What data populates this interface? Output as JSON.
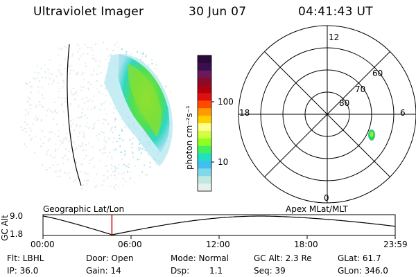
{
  "header": {
    "instrument": "Ultraviolet Imager",
    "date": "30 Jun 07",
    "time": "04:41:43 UT"
  },
  "colorbar": {
    "unit_label": "photon cm⁻²s⁻¹",
    "ticks": [
      "100",
      "10"
    ],
    "colors": [
      "#2a0a3a",
      "#3a0f4f",
      "#6a1a5a",
      "#8a0a2a",
      "#b00010",
      "#e01010",
      "#ff4a00",
      "#ff9a00",
      "#ffd000",
      "#ffff90",
      "#d0ff40",
      "#90ff20",
      "#40f060",
      "#20e0c0",
      "#40c0f0",
      "#80d8e8",
      "#c0e8e0",
      "#e8f0ee"
    ]
  },
  "polar_plot": {
    "mlt_labels": [
      "12",
      "18",
      "6",
      "0"
    ],
    "lat_labels": [
      "60",
      "70",
      "80"
    ]
  },
  "timeline": {
    "ylabel": "GC Alt",
    "ymax": "9.0",
    "ymin": "1.8",
    "left_title": "Geographic Lat/Lon",
    "right_title": "Apex MLat/MLT",
    "time_ticks": [
      "00:00",
      "06:00",
      "12:00",
      "18:00",
      "23:59"
    ],
    "current_time_fraction": 0.1957
  },
  "info": {
    "flt": "Flt: LBHL",
    "ip": "IP: 36.0",
    "door": "Door: Open",
    "gain": "Gain: 14",
    "mode": "Mode: Normal",
    "dsp_label": "Dsp:",
    "dsp_value": "1.1",
    "gc_alt": "GC Alt: 2.3 Re",
    "seq": "Seq: 39",
    "glat": "GLat: 61.7",
    "glon": "GLon: 346.0"
  },
  "colors": {
    "foreground": "#000000",
    "marker": "#cc0000",
    "aurora_green": "#60e040"
  }
}
